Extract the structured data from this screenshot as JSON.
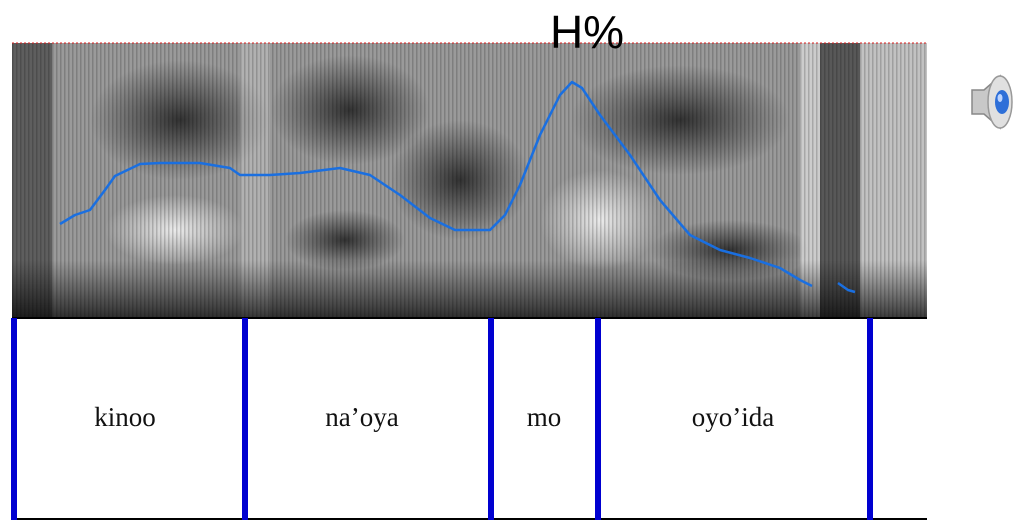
{
  "annotation": "H%",
  "tier": {
    "words": [
      "kinoo",
      "na’oya",
      "mo",
      "oyo’ida"
    ]
  }
}
